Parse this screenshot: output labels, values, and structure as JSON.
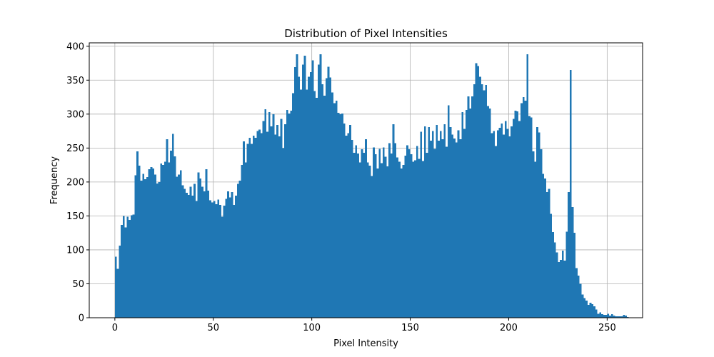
{
  "chart_data": {
    "type": "bar",
    "title": "Distribution of Pixel Intensities",
    "xlabel": "Pixel Intensity",
    "ylabel": "Frequency",
    "xlim": [
      -13,
      268
    ],
    "ylim": [
      0,
      405
    ],
    "xticks": [
      0,
      50,
      100,
      150,
      200,
      250
    ],
    "yticks": [
      0,
      50,
      100,
      150,
      200,
      250,
      300,
      350,
      400
    ],
    "grid": true,
    "bar_color": "#1f77b4",
    "bin_start": 0,
    "bin_width": 1,
    "values": [
      90,
      72,
      106,
      137,
      150,
      133,
      149,
      144,
      151,
      152,
      210,
      245,
      224,
      202,
      212,
      204,
      207,
      219,
      222,
      220,
      211,
      198,
      200,
      227,
      225,
      230,
      263,
      229,
      246,
      271,
      238,
      208,
      211,
      217,
      195,
      190,
      184,
      181,
      193,
      180,
      197,
      172,
      214,
      205,
      193,
      186,
      219,
      187,
      173,
      170,
      172,
      167,
      174,
      166,
      149,
      165,
      175,
      186,
      177,
      185,
      166,
      180,
      197,
      202,
      225,
      260,
      229,
      256,
      265,
      256,
      268,
      265,
      275,
      277,
      272,
      290,
      307,
      274,
      303,
      282,
      300,
      270,
      284,
      267,
      293,
      250,
      285,
      306,
      301,
      305,
      331,
      369,
      388,
      355,
      336,
      373,
      386,
      336,
      355,
      362,
      379,
      334,
      324,
      373,
      388,
      344,
      327,
      353,
      370,
      354,
      332,
      316,
      320,
      302,
      300,
      301,
      286,
      268,
      272,
      284,
      262,
      243,
      254,
      242,
      229,
      248,
      243,
      263,
      229,
      224,
      209,
      251,
      241,
      220,
      249,
      228,
      251,
      237,
      223,
      257,
      242,
      285,
      257,
      236,
      230,
      220,
      225,
      239,
      254,
      248,
      241,
      230,
      232,
      253,
      234,
      274,
      231,
      282,
      243,
      281,
      261,
      275,
      249,
      284,
      261,
      275,
      263,
      285,
      252,
      313,
      281,
      270,
      264,
      258,
      276,
      263,
      303,
      278,
      306,
      326,
      308,
      326,
      344,
      375,
      371,
      355,
      344,
      335,
      343,
      312,
      308,
      272,
      275,
      253,
      276,
      280,
      286,
      270,
      290,
      278,
      267,
      282,
      293,
      305,
      304,
      290,
      316,
      325,
      320,
      388,
      297,
      295,
      245,
      230,
      281,
      273,
      248,
      212,
      205,
      185,
      190,
      153,
      126,
      111,
      96,
      82,
      85,
      99,
      84,
      127,
      185,
      365,
      163,
      125,
      73,
      62,
      50,
      34,
      29,
      25,
      19,
      22,
      20,
      17,
      12,
      6,
      8,
      5,
      4,
      4,
      6,
      3,
      5,
      3,
      2,
      2,
      2,
      2,
      4,
      3,
      1
    ]
  }
}
